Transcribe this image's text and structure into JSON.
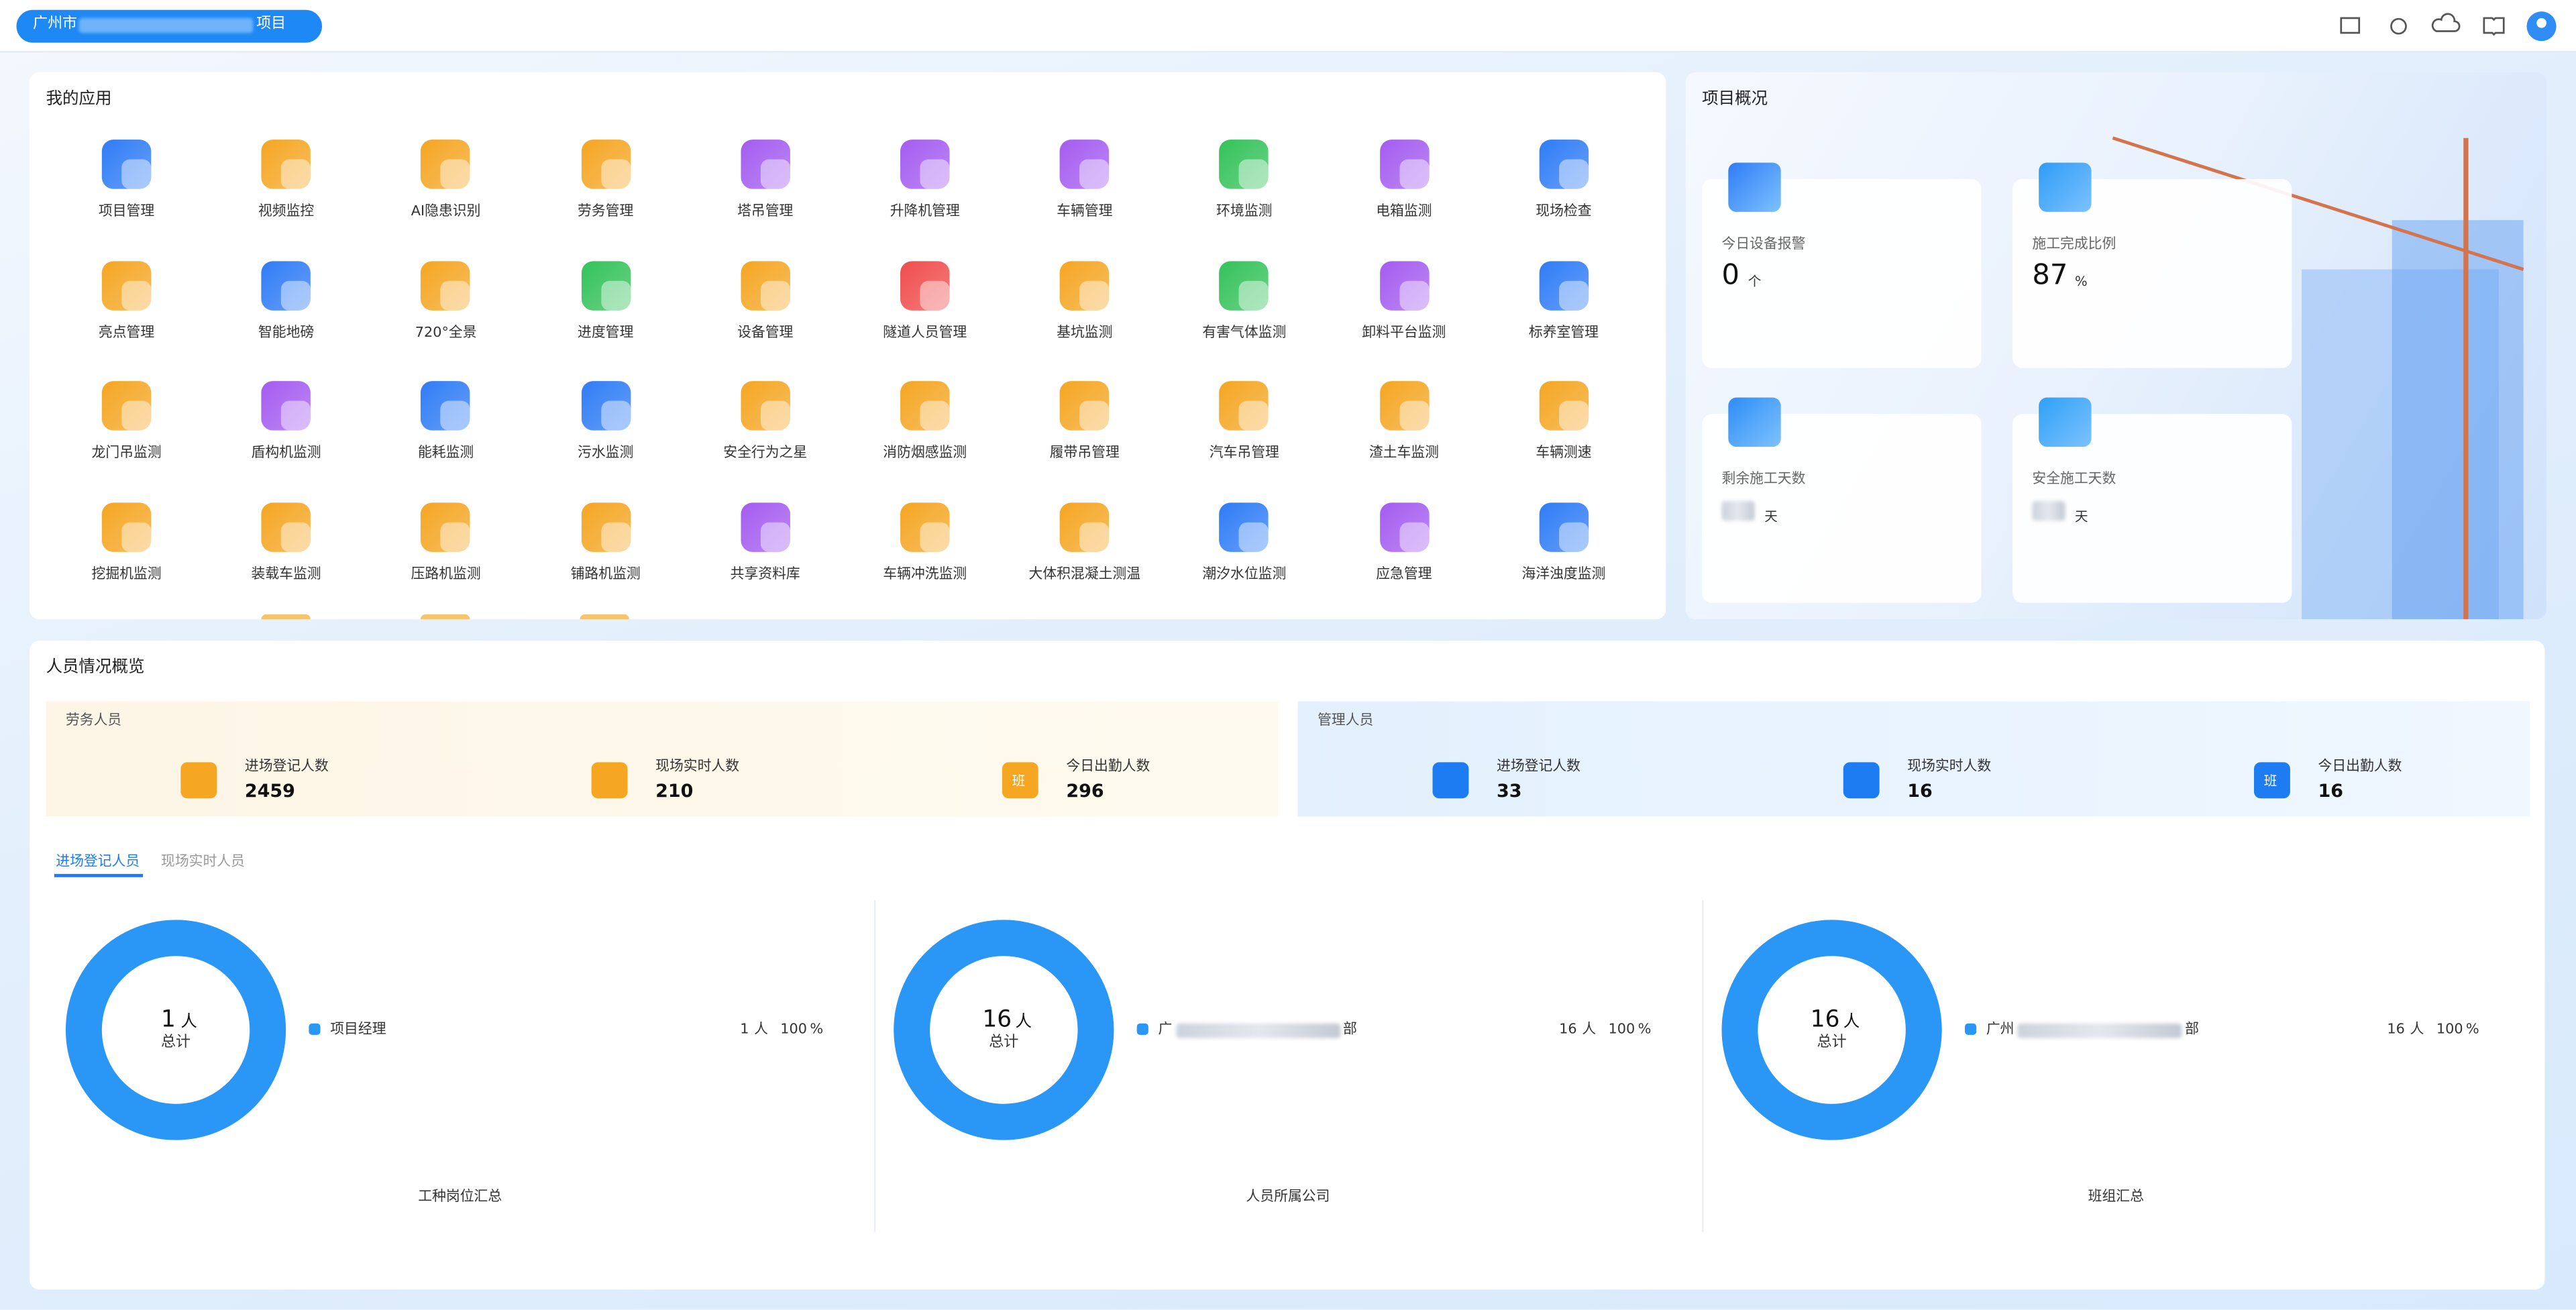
{
  "header": {
    "project_prefix": "广州市",
    "project_suffix": "项目"
  },
  "apps": {
    "title": "我的应用",
    "items": [
      {
        "name": "项目管理",
        "color": "#2f7cf6"
      },
      {
        "name": "视频监控",
        "color": "#f5a623"
      },
      {
        "name": "AI隐患识别",
        "color": "#f5a623"
      },
      {
        "name": "劳务管理",
        "color": "#f5a623"
      },
      {
        "name": "塔吊管理",
        "color": "#a45cf0"
      },
      {
        "name": "升降机管理",
        "color": "#a45cf0"
      },
      {
        "name": "车辆管理",
        "color": "#a45cf0"
      },
      {
        "name": "环境监测",
        "color": "#34c25a"
      },
      {
        "name": "电箱监测",
        "color": "#a45cf0"
      },
      {
        "name": "现场检查",
        "color": "#2f7cf6"
      },
      {
        "name": "亮点管理",
        "color": "#f5a623"
      },
      {
        "name": "智能地磅",
        "color": "#2f7cf6"
      },
      {
        "name": "720°全景",
        "color": "#f5a623"
      },
      {
        "name": "进度管理",
        "color": "#34c25a"
      },
      {
        "name": "设备管理",
        "color": "#f5a623"
      },
      {
        "name": "隧道人员管理",
        "color": "#f04d4d"
      },
      {
        "name": "基坑监测",
        "color": "#f5a623"
      },
      {
        "name": "有害气体监测",
        "color": "#34c25a"
      },
      {
        "name": "卸料平台监测",
        "color": "#a45cf0"
      },
      {
        "name": "标养室管理",
        "color": "#2f7cf6"
      },
      {
        "name": "龙门吊监测",
        "color": "#f5a623"
      },
      {
        "name": "盾构机监测",
        "color": "#a45cf0"
      },
      {
        "name": "能耗监测",
        "color": "#2f7cf6"
      },
      {
        "name": "污水监测",
        "color": "#2f7cf6"
      },
      {
        "name": "安全行为之星",
        "color": "#f5a623"
      },
      {
        "name": "消防烟感监测",
        "color": "#f5a623"
      },
      {
        "name": "履带吊管理",
        "color": "#f5a623"
      },
      {
        "name": "汽车吊管理",
        "color": "#f5a623"
      },
      {
        "name": "渣土车监测",
        "color": "#f5a623"
      },
      {
        "name": "车辆测速",
        "color": "#f5a623"
      },
      {
        "name": "挖掘机监测",
        "color": "#f5a623"
      },
      {
        "name": "装载车监测",
        "color": "#f5a623"
      },
      {
        "name": "压路机监测",
        "color": "#f5a623"
      },
      {
        "name": "铺路机监测",
        "color": "#f5a623"
      },
      {
        "name": "共享资料库",
        "color": "#a45cf0"
      },
      {
        "name": "车辆冲洗监测",
        "color": "#f5a623"
      },
      {
        "name": "大体积混凝土测温",
        "color": "#f5a623"
      },
      {
        "name": "潮汐水位监测",
        "color": "#2f7cf6"
      },
      {
        "name": "应急管理",
        "color": "#a45cf0"
      },
      {
        "name": "海洋浊度监测",
        "color": "#2f7cf6"
      }
    ]
  },
  "overview": {
    "title": "项目概况",
    "cards": [
      {
        "label": "今日设备报警",
        "value": 0,
        "unit": "个"
      },
      {
        "label": "施工完成比例",
        "value": 87,
        "unit": "%"
      },
      {
        "label": "剩余施工天数",
        "unit": "天"
      },
      {
        "label": "安全施工天数",
        "unit": "天"
      }
    ]
  },
  "personnel": {
    "title": "人员情况概览",
    "calendar_icon_text": "班",
    "groups": [
      {
        "title": "劳务人员",
        "color": "#f5a623",
        "stats": [
          {
            "label": "进场登记人数",
            "value": 2459
          },
          {
            "label": "现场实时人数",
            "value": 210
          },
          {
            "label": "今日出勤人数",
            "value": 296
          }
        ]
      },
      {
        "title": "管理人员",
        "color": "#1e7cf2",
        "stats": [
          {
            "label": "进场登记人数",
            "value": 33
          },
          {
            "label": "现场实时人数",
            "value": 16
          },
          {
            "label": "今日出勤人数",
            "value": 16
          }
        ]
      }
    ],
    "tabs": [
      "进场登记人员",
      "现场实时人员"
    ],
    "donuts": [
      {
        "total": 1,
        "total_unit": "人",
        "total_label": "总计",
        "legend": {
          "label": "项目经理",
          "count": 1,
          "count_unit": "人",
          "percent": 100,
          "percent_unit": "%"
        },
        "caption": "工种岗位汇总",
        "color": "#2a96f5"
      },
      {
        "total": 16,
        "total_unit": "人",
        "total_label": "总计",
        "legend": {
          "label_start": "广",
          "label_end": "部",
          "count": 16,
          "count_unit": "人",
          "percent": 100,
          "percent_unit": "%"
        },
        "caption": "人员所属公司",
        "color": "#2a96f5"
      },
      {
        "total": 16,
        "total_unit": "人",
        "total_label": "总计",
        "legend": {
          "label_start": "广州",
          "label_end": "部",
          "count": 16,
          "count_unit": "人",
          "percent": 100,
          "percent_unit": "%"
        },
        "caption": "班组汇总",
        "color": "#2a96f5"
      }
    ]
  }
}
